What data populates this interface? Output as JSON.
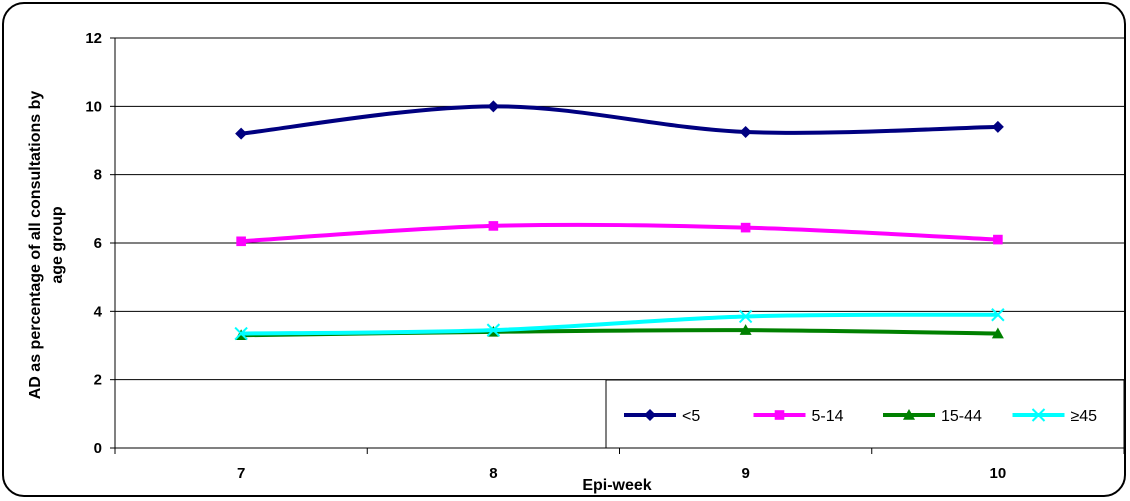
{
  "chart_data": {
    "type": "line",
    "title": "",
    "xlabel": "Epi-week",
    "ylabel_lines": [
      "AD as percentage of all consultations by",
      "age group"
    ],
    "categories": [
      "7",
      "8",
      "9",
      "10"
    ],
    "ylim": [
      0,
      12
    ],
    "yticks": [
      "0",
      "2",
      "4",
      "6",
      "8",
      "10",
      "12"
    ],
    "grid": true,
    "legend_position": "bottom-right",
    "series": [
      {
        "name": "<5",
        "values": [
          9.2,
          10.0,
          9.25,
          9.4
        ],
        "color": "#000080",
        "marker": "diamond"
      },
      {
        "name": "5-14",
        "values": [
          6.05,
          6.5,
          6.45,
          6.1
        ],
        "color": "#ff00ff",
        "marker": "square"
      },
      {
        "name": "15-44",
        "values": [
          3.3,
          3.4,
          3.45,
          3.35
        ],
        "color": "#008000",
        "marker": "triangle"
      },
      {
        "name": "≥45",
        "values": [
          3.35,
          3.45,
          3.85,
          3.9
        ],
        "color": "#00ffff",
        "marker": "x"
      }
    ]
  }
}
